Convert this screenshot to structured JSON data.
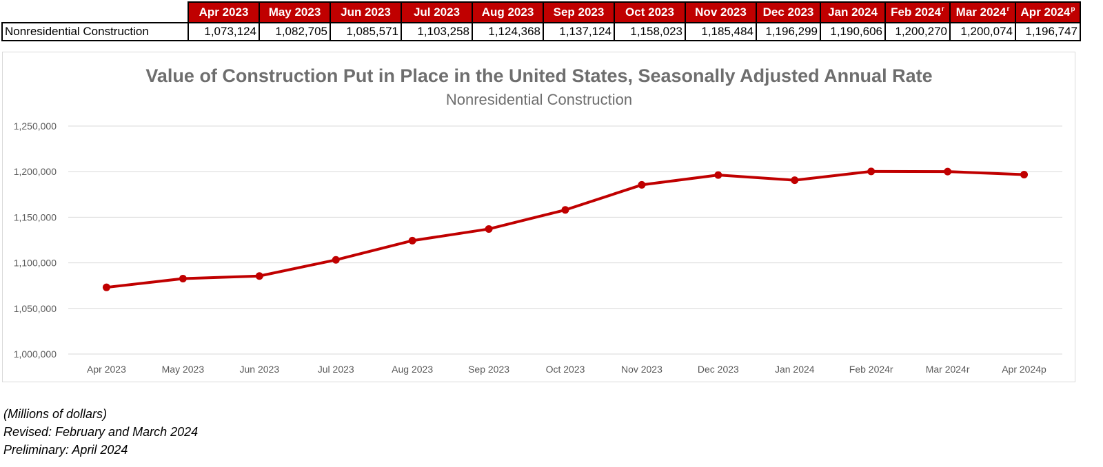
{
  "table": {
    "columns": [
      {
        "label": "Apr 2023",
        "mark": ""
      },
      {
        "label": "May 2023",
        "mark": ""
      },
      {
        "label": "Jun 2023",
        "mark": ""
      },
      {
        "label": "Jul 2023",
        "mark": ""
      },
      {
        "label": "Aug 2023",
        "mark": ""
      },
      {
        "label": "Sep 2023",
        "mark": ""
      },
      {
        "label": "Oct 2023",
        "mark": ""
      },
      {
        "label": "Nov 2023",
        "mark": ""
      },
      {
        "label": "Dec 2023",
        "mark": ""
      },
      {
        "label": "Jan 2024",
        "mark": ""
      },
      {
        "label": "Feb 2024",
        "mark": "r"
      },
      {
        "label": "Mar 2024",
        "mark": "r"
      },
      {
        "label": "Apr 2024",
        "mark": "p"
      }
    ],
    "row_label": "Nonresidential Construction",
    "row_values": [
      "1,073,124",
      "1,082,705",
      "1,085,571",
      "1,103,258",
      "1,124,368",
      "1,137,124",
      "1,158,023",
      "1,185,484",
      "1,196,299",
      "1,190,606",
      "1,200,270",
      "1,200,074",
      "1,196,747"
    ]
  },
  "chart_data": {
    "type": "line",
    "title": "Value of Construction Put in Place in the United States, Seasonally Adjusted Annual Rate",
    "subtitle": "Nonresidential Construction",
    "categories": [
      "Apr 2023",
      "May 2023",
      "Jun 2023",
      "Jul 2023",
      "Aug 2023",
      "Sep 2023",
      "Oct 2023",
      "Nov 2023",
      "Dec 2023",
      "Jan 2024",
      "Feb 2024r",
      "Mar 2024r",
      "Apr 2024p"
    ],
    "series": [
      {
        "name": "Nonresidential Construction",
        "values": [
          1073124,
          1082705,
          1085571,
          1103258,
          1124368,
          1137124,
          1158023,
          1185484,
          1196299,
          1190606,
          1200270,
          1200074,
          1196747
        ]
      }
    ],
    "ylim": [
      1000000,
      1250000
    ],
    "yticks": [
      1000000,
      1050000,
      1100000,
      1150000,
      1200000,
      1250000
    ],
    "ytick_labels": [
      "1,000,000",
      "1,050,000",
      "1,100,000",
      "1,150,000",
      "1,200,000",
      "1,250,000"
    ],
    "xlabel": "",
    "ylabel": "",
    "grid": true,
    "line_color": "#c00000"
  },
  "notes": {
    "units": "(Millions of dollars)",
    "revised": "Revised: February and March 2024",
    "preliminary": "Preliminary: April 2024"
  }
}
